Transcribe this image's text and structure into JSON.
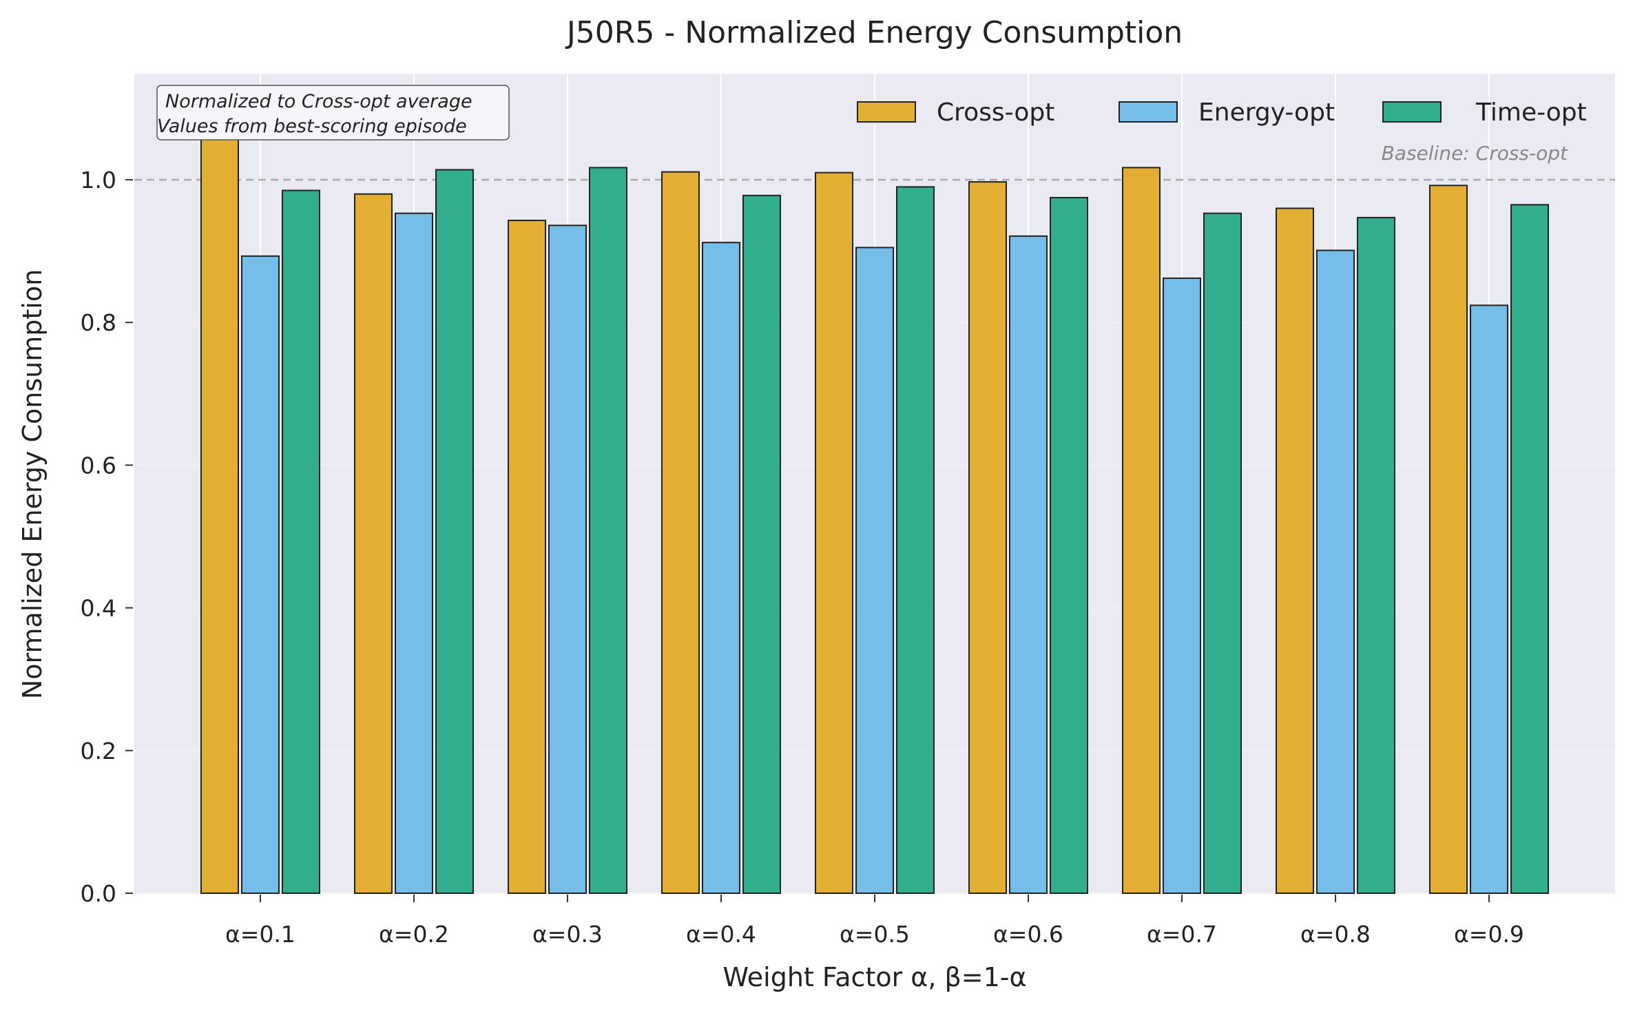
{
  "chart_data": {
    "type": "bar",
    "title": "J50R5 - Normalized Energy Consumption",
    "xlabel": "Weight Factor α, β=1-α",
    "ylabel": "Normalized Energy Consumption",
    "categories": [
      "α=0.1",
      "α=0.2",
      "α=0.3",
      "α=0.4",
      "α=0.5",
      "α=0.6",
      "α=0.7",
      "α=0.8",
      "α=0.9"
    ],
    "series": [
      {
        "name": "Cross-opt",
        "color": "#E3AE31",
        "values": [
          1.095,
          0.98,
          0.943,
          1.011,
          1.01,
          0.997,
          1.017,
          0.96,
          0.992
        ]
      },
      {
        "name": "Energy-opt",
        "color": "#76BEEA",
        "values": [
          0.893,
          0.953,
          0.936,
          0.912,
          0.905,
          0.921,
          0.862,
          0.901,
          0.824
        ]
      },
      {
        "name": "Time-opt",
        "color": "#31AE8D",
        "values": [
          0.985,
          1.014,
          1.017,
          0.978,
          0.99,
          0.975,
          0.953,
          0.947,
          0.965
        ]
      }
    ],
    "ylim": [
      0,
      1.15
    ],
    "yticks": [
      "0.0",
      "0.2",
      "0.4",
      "0.6",
      "0.8",
      "1.0"
    ],
    "grid": true,
    "legend_position": "top-right",
    "reference_line": {
      "value": 1.0,
      "label": "Baseline: Cross-opt"
    },
    "annotation": {
      "lines": [
        "Normalized to Cross-opt average",
        "Values from best-scoring episode"
      ]
    }
  },
  "colors": {
    "plot_background": "#EAEAF2",
    "bar_edge": "#222222",
    "baseline": "#AAAAAA"
  }
}
